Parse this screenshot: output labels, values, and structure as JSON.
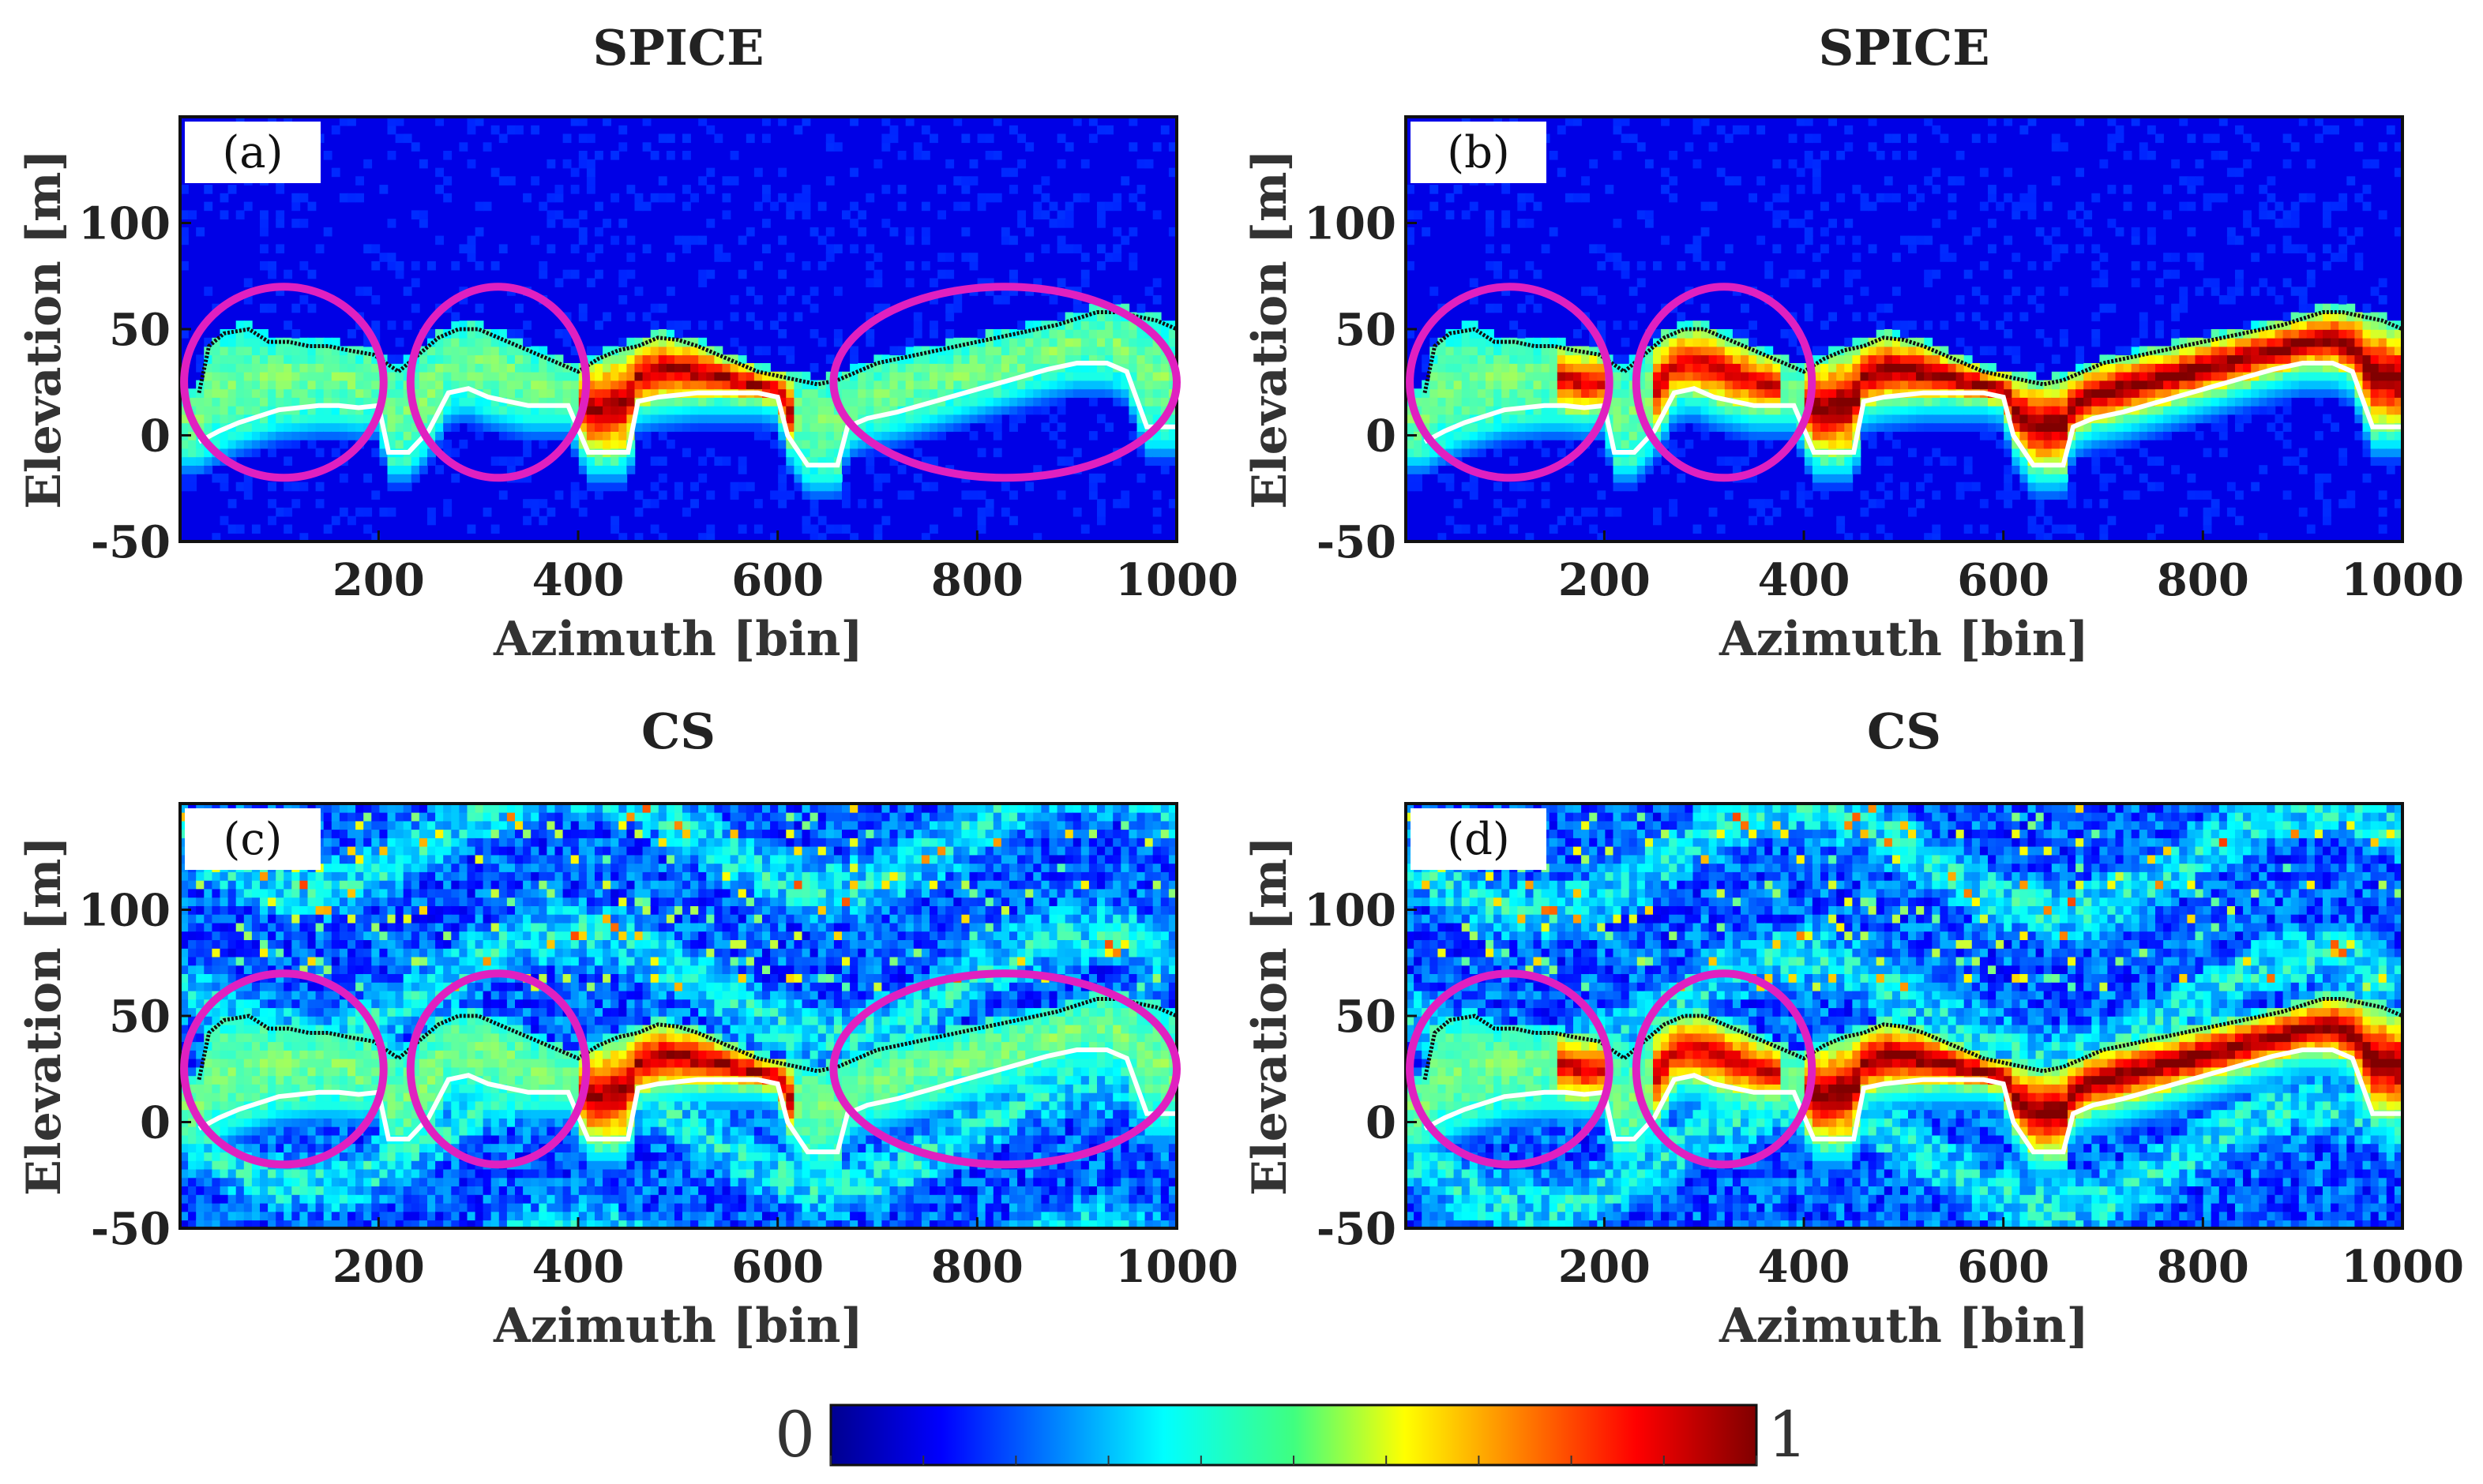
{
  "chart_data": [
    {
      "panel": "(a)",
      "title": "SPICE",
      "type": "heatmap",
      "xlabel": "Azimuth [bin]",
      "ylabel": "Elevation [m]",
      "xlim": [
        1,
        1000
      ],
      "ylim": [
        -50,
        150
      ],
      "xticks": [
        200,
        400,
        600,
        800,
        1000
      ],
      "yticks": [
        100,
        50,
        0,
        -50
      ],
      "cmap": "jet",
      "clim": [
        0,
        1
      ],
      "noise": "low",
      "ellipses": [
        {
          "cx": 105,
          "cy": 25,
          "rx": 100,
          "ry": 45
        },
        {
          "cx": 320,
          "cy": 25,
          "rx": 88,
          "ry": 45
        },
        {
          "cx": 828,
          "cy": 25,
          "rx": 172,
          "ry": 45
        }
      ],
      "highlight": [
        {
          "x0": 400,
          "x1": 620,
          "v": 0.9
        }
      ],
      "black_contour": {
        "x": [
          20,
          30,
          45,
          70,
          90,
          110,
          130,
          150,
          170,
          195,
          220,
          240,
          260,
          280,
          300,
          320,
          340,
          360,
          380,
          400,
          420,
          440,
          460,
          480,
          500,
          520,
          540,
          560,
          580,
          600,
          620,
          640,
          660,
          680,
          700,
          720,
          740,
          760,
          780,
          800,
          820,
          840,
          860,
          880,
          900,
          920,
          940,
          960,
          980,
          1000
        ],
        "y": [
          20,
          42,
          48,
          50,
          44,
          44,
          42,
          42,
          40,
          38,
          30,
          38,
          46,
          50,
          50,
          46,
          42,
          38,
          34,
          30,
          36,
          40,
          42,
          46,
          45,
          42,
          38,
          34,
          30,
          28,
          26,
          24,
          26,
          30,
          34,
          36,
          38,
          40,
          42,
          44,
          46,
          48,
          50,
          52,
          55,
          58,
          58,
          56,
          54,
          50
        ]
      },
      "white_contour": {
        "x": [
          20,
          40,
          60,
          80,
          100,
          120,
          140,
          160,
          180,
          200,
          210,
          230,
          250,
          270,
          290,
          310,
          330,
          350,
          370,
          390,
          410,
          430,
          450,
          460,
          480,
          500,
          520,
          540,
          560,
          580,
          600,
          610,
          630,
          660,
          670,
          690,
          720,
          750,
          780,
          810,
          840,
          870,
          900,
          930,
          950,
          970,
          1000
        ],
        "y": [
          -3,
          2,
          6,
          9,
          12,
          13,
          14,
          14,
          13,
          14,
          -8,
          -8,
          2,
          20,
          22,
          18,
          16,
          14,
          14,
          14,
          -8,
          -8,
          -8,
          16,
          18,
          19,
          20,
          20,
          20,
          20,
          18,
          0,
          -14,
          -14,
          4,
          8,
          11,
          15,
          19,
          23,
          27,
          31,
          34,
          34,
          30,
          4,
          4
        ]
      }
    },
    {
      "panel": "(b)",
      "title": "SPICE",
      "type": "heatmap",
      "xlabel": "Azimuth [bin]",
      "ylabel": "Elevation [m]",
      "xlim": [
        1,
        1000
      ],
      "ylim": [
        -50,
        150
      ],
      "xticks": [
        200,
        400,
        600,
        800,
        1000
      ],
      "yticks": [
        100,
        50,
        0,
        -50
      ],
      "cmap": "jet",
      "clim": [
        0,
        1
      ],
      "noise": "low",
      "ellipses": [
        {
          "cx": 105,
          "cy": 25,
          "rx": 100,
          "ry": 45
        },
        {
          "cx": 320,
          "cy": 25,
          "rx": 88,
          "ry": 45
        }
      ],
      "highlight": [
        {
          "x0": 150,
          "x1": 200,
          "v": 0.85
        },
        {
          "x0": 250,
          "x1": 380,
          "v": 0.85
        },
        {
          "x0": 400,
          "x1": 1000,
          "v": 0.95
        }
      ],
      "black_contour": {
        "x": [
          20,
          30,
          45,
          70,
          90,
          110,
          130,
          150,
          170,
          195,
          220,
          240,
          260,
          280,
          300,
          320,
          340,
          360,
          380,
          400,
          420,
          440,
          460,
          480,
          500,
          520,
          540,
          560,
          580,
          600,
          620,
          640,
          660,
          680,
          700,
          720,
          740,
          760,
          780,
          800,
          820,
          840,
          860,
          880,
          900,
          920,
          940,
          960,
          980,
          1000
        ],
        "y": [
          20,
          42,
          48,
          50,
          44,
          44,
          42,
          42,
          40,
          38,
          30,
          38,
          46,
          50,
          50,
          46,
          42,
          38,
          34,
          30,
          36,
          40,
          42,
          46,
          45,
          42,
          38,
          34,
          30,
          28,
          26,
          24,
          26,
          30,
          34,
          36,
          38,
          40,
          42,
          44,
          46,
          48,
          50,
          52,
          55,
          58,
          58,
          56,
          54,
          50
        ]
      },
      "white_contour": {
        "x": [
          20,
          40,
          60,
          80,
          100,
          120,
          140,
          160,
          180,
          200,
          210,
          230,
          250,
          270,
          290,
          310,
          330,
          350,
          370,
          390,
          410,
          430,
          450,
          460,
          480,
          500,
          520,
          540,
          560,
          580,
          600,
          610,
          630,
          660,
          670,
          690,
          720,
          750,
          780,
          810,
          840,
          870,
          900,
          930,
          950,
          970,
          1000
        ],
        "y": [
          -3,
          2,
          6,
          9,
          12,
          13,
          14,
          14,
          13,
          14,
          -8,
          -8,
          2,
          20,
          22,
          18,
          16,
          14,
          14,
          14,
          -8,
          -8,
          -8,
          16,
          18,
          19,
          20,
          20,
          20,
          20,
          18,
          0,
          -14,
          -14,
          4,
          8,
          11,
          15,
          19,
          23,
          27,
          31,
          34,
          34,
          30,
          4,
          4
        ]
      }
    },
    {
      "panel": "(c)",
      "title": "CS",
      "type": "heatmap",
      "xlabel": "Azimuth [bin]",
      "ylabel": "Elevation [m]",
      "xlim": [
        1,
        1000
      ],
      "ylim": [
        -50,
        150
      ],
      "xticks": [
        200,
        400,
        600,
        800,
        1000
      ],
      "yticks": [
        100,
        50,
        0,
        -50
      ],
      "cmap": "jet",
      "clim": [
        0,
        1
      ],
      "noise": "high",
      "ellipses": [
        {
          "cx": 105,
          "cy": 25,
          "rx": 100,
          "ry": 45
        },
        {
          "cx": 320,
          "cy": 25,
          "rx": 88,
          "ry": 45
        },
        {
          "cx": 828,
          "cy": 25,
          "rx": 172,
          "ry": 45
        }
      ],
      "highlight": [
        {
          "x0": 400,
          "x1": 620,
          "v": 0.9
        }
      ],
      "black_contour": {
        "x": [
          20,
          30,
          45,
          70,
          90,
          110,
          130,
          150,
          170,
          195,
          220,
          240,
          260,
          280,
          300,
          320,
          340,
          360,
          380,
          400,
          420,
          440,
          460,
          480,
          500,
          520,
          540,
          560,
          580,
          600,
          620,
          640,
          660,
          680,
          700,
          720,
          740,
          760,
          780,
          800,
          820,
          840,
          860,
          880,
          900,
          920,
          940,
          960,
          980,
          1000
        ],
        "y": [
          20,
          42,
          48,
          50,
          44,
          44,
          42,
          42,
          40,
          38,
          30,
          38,
          46,
          50,
          50,
          46,
          42,
          38,
          34,
          30,
          36,
          40,
          42,
          46,
          45,
          42,
          38,
          34,
          30,
          28,
          26,
          24,
          26,
          30,
          34,
          36,
          38,
          40,
          42,
          44,
          46,
          48,
          50,
          52,
          55,
          58,
          58,
          56,
          54,
          50
        ]
      },
      "white_contour": {
        "x": [
          20,
          40,
          60,
          80,
          100,
          120,
          140,
          160,
          180,
          200,
          210,
          230,
          250,
          270,
          290,
          310,
          330,
          350,
          370,
          390,
          410,
          430,
          450,
          460,
          480,
          500,
          520,
          540,
          560,
          580,
          600,
          610,
          630,
          660,
          670,
          690,
          720,
          750,
          780,
          810,
          840,
          870,
          900,
          930,
          950,
          970,
          1000
        ],
        "y": [
          -3,
          2,
          6,
          9,
          12,
          13,
          14,
          14,
          13,
          14,
          -8,
          -8,
          2,
          20,
          22,
          18,
          16,
          14,
          14,
          14,
          -8,
          -8,
          -8,
          16,
          18,
          19,
          20,
          20,
          20,
          20,
          18,
          0,
          -14,
          -14,
          4,
          8,
          11,
          15,
          19,
          23,
          27,
          31,
          34,
          34,
          30,
          4,
          4
        ]
      }
    },
    {
      "panel": "(d)",
      "title": "CS",
      "type": "heatmap",
      "xlabel": "Azimuth [bin]",
      "ylabel": "Elevation [m]",
      "xlim": [
        1,
        1000
      ],
      "ylim": [
        -50,
        150
      ],
      "xticks": [
        200,
        400,
        600,
        800,
        1000
      ],
      "yticks": [
        100,
        50,
        0,
        -50
      ],
      "cmap": "jet",
      "clim": [
        0,
        1
      ],
      "noise": "high",
      "ellipses": [
        {
          "cx": 105,
          "cy": 25,
          "rx": 100,
          "ry": 45
        },
        {
          "cx": 320,
          "cy": 25,
          "rx": 88,
          "ry": 45
        }
      ],
      "highlight": [
        {
          "x0": 150,
          "x1": 200,
          "v": 0.85
        },
        {
          "x0": 250,
          "x1": 380,
          "v": 0.85
        },
        {
          "x0": 400,
          "x1": 1000,
          "v": 0.95
        }
      ],
      "black_contour": {
        "x": [
          20,
          30,
          45,
          70,
          90,
          110,
          130,
          150,
          170,
          195,
          220,
          240,
          260,
          280,
          300,
          320,
          340,
          360,
          380,
          400,
          420,
          440,
          460,
          480,
          500,
          520,
          540,
          560,
          580,
          600,
          620,
          640,
          660,
          680,
          700,
          720,
          740,
          760,
          780,
          800,
          820,
          840,
          860,
          880,
          900,
          920,
          940,
          960,
          980,
          1000
        ],
        "y": [
          20,
          42,
          48,
          50,
          44,
          44,
          42,
          42,
          40,
          38,
          30,
          38,
          46,
          50,
          50,
          46,
          42,
          38,
          34,
          30,
          36,
          40,
          42,
          46,
          45,
          42,
          38,
          34,
          30,
          28,
          26,
          24,
          26,
          30,
          34,
          36,
          38,
          40,
          42,
          44,
          46,
          48,
          50,
          52,
          55,
          58,
          58,
          56,
          54,
          50
        ]
      },
      "white_contour": {
        "x": [
          20,
          40,
          60,
          80,
          100,
          120,
          140,
          160,
          180,
          200,
          210,
          230,
          250,
          270,
          290,
          310,
          330,
          350,
          370,
          390,
          410,
          430,
          450,
          460,
          480,
          500,
          520,
          540,
          560,
          580,
          600,
          610,
          630,
          660,
          670,
          690,
          720,
          750,
          780,
          810,
          840,
          870,
          900,
          930,
          950,
          970,
          1000
        ],
        "y": [
          -3,
          2,
          6,
          9,
          12,
          13,
          14,
          14,
          13,
          14,
          -8,
          -8,
          2,
          20,
          22,
          18,
          16,
          14,
          14,
          14,
          -8,
          -8,
          -8,
          16,
          18,
          19,
          20,
          20,
          20,
          20,
          18,
          0,
          -14,
          -14,
          4,
          8,
          11,
          15,
          19,
          23,
          27,
          31,
          34,
          34,
          30,
          4,
          4
        ]
      }
    }
  ],
  "colorbar": {
    "min_label": "0",
    "max_label": "1",
    "cmap": "jet",
    "ticks": [
      0.0,
      0.1,
      0.2,
      0.3,
      0.4,
      0.5,
      0.6,
      0.7,
      0.8,
      0.9,
      1.0
    ]
  },
  "colors": {
    "ellipse": "#e020c0",
    "black_contour": "#111111",
    "white_contour": "#ffffff",
    "frame": "#111111"
  }
}
